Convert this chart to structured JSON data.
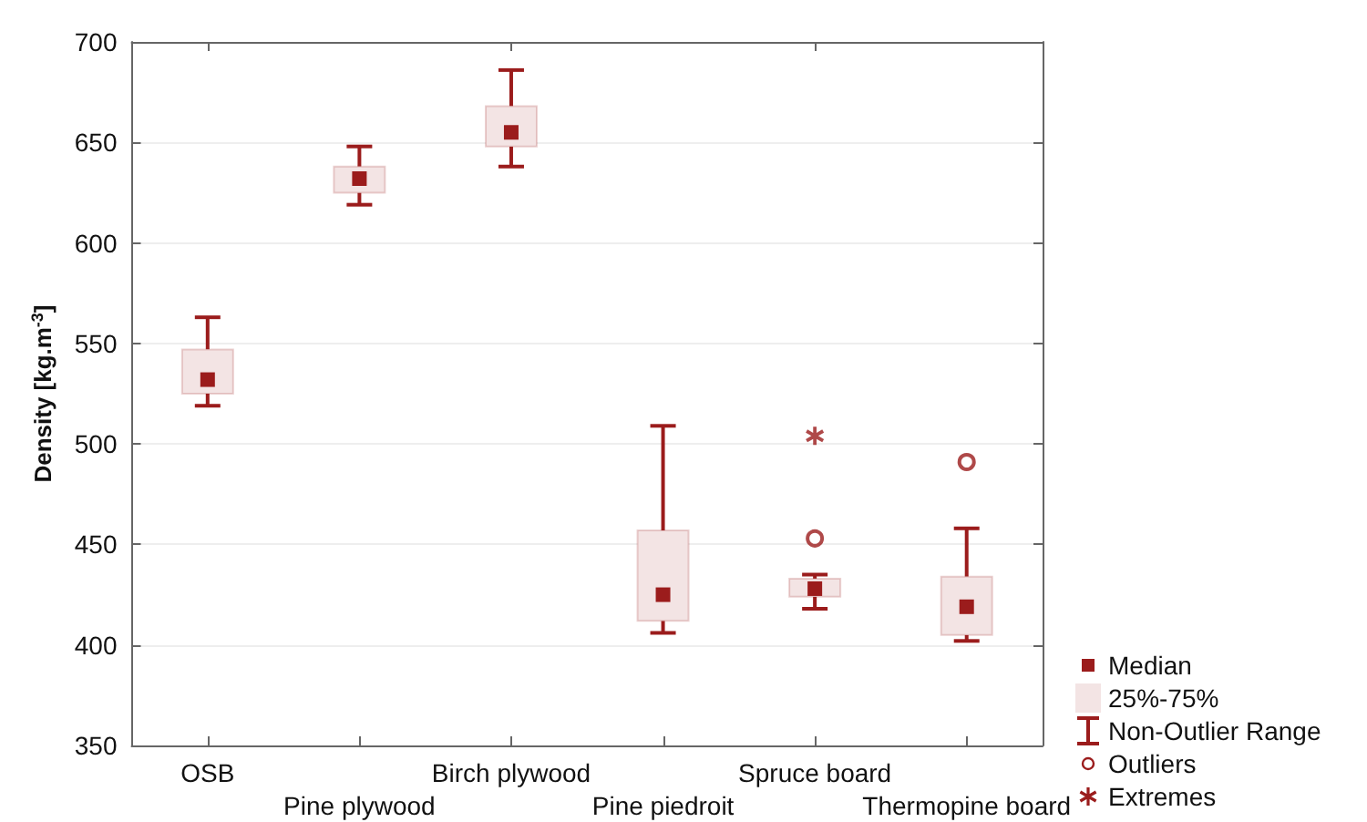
{
  "chart_data": {
    "type": "box",
    "ylabel": "Density [kg.m$^{-3}$]",
    "categories": [
      "OSB",
      "Pine plywood",
      "Birch plywood",
      "Pine piedroit",
      "Spruce board",
      "Thermopine board"
    ],
    "ylim": [
      350,
      700
    ],
    "yticks": [
      350,
      400,
      450,
      500,
      550,
      600,
      650,
      700
    ],
    "grid": "y",
    "legend": "bottom right",
    "annotations": [
      "Median",
      "Non-Outlier Range"
    ],
    "series": [
      {
        "name": "25%-75%",
        "color": "#9b1c1c",
        "boxes": [
          {
            "low": 519,
            "q1": 525,
            "median": 532,
            "q3": 547,
            "high": 563
          },
          {
            "low": 619,
            "q1": 625,
            "median": 632,
            "q3": 638,
            "high": 648
          },
          {
            "low": 638,
            "q1": 648,
            "median": 655,
            "q3": 668,
            "high": 686
          },
          {
            "low": 406,
            "q1": 412,
            "median": 425,
            "q3": 457,
            "high": 509
          },
          {
            "low": 418,
            "q1": 424,
            "median": 428,
            "q3": 433,
            "high": 435
          },
          {
            "low": 402,
            "q1": 405,
            "median": 419,
            "q3": 434,
            "high": 458
          }
        ]
      },
      {
        "type": "scatter",
        "name": "Outliers",
        "color": "#9b1c1c",
        "marker": "circle",
        "x": [
          "Spruce board",
          "Thermopine board"
        ],
        "values": [
          453,
          491
        ]
      },
      {
        "type": "scatter",
        "name": "Extremes",
        "color": "#9b1c1c",
        "marker": "star",
        "x": [
          "Spruce board"
        ],
        "values": [
          504
        ]
      }
    ]
  }
}
